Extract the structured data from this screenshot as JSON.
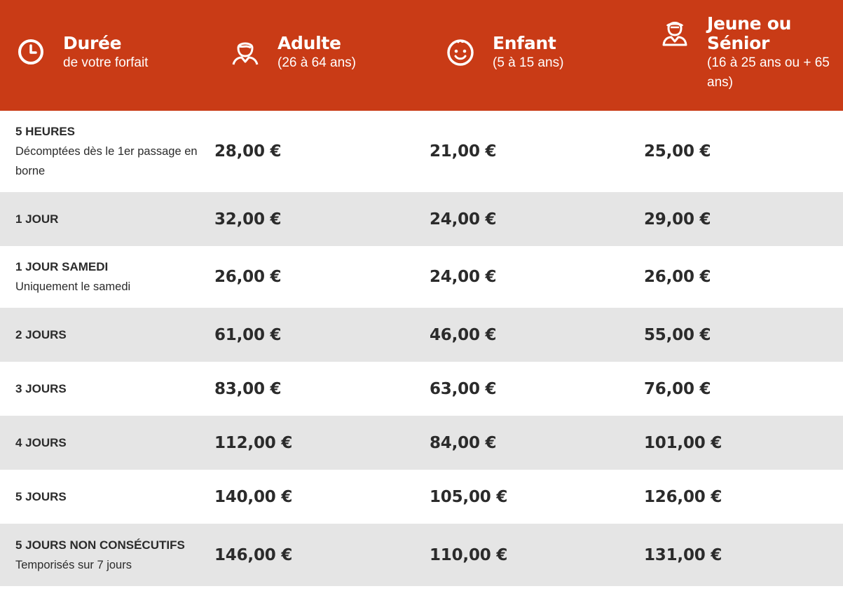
{
  "colors": {
    "brand": "#c93b16",
    "row_alt": "#e5e5e5",
    "text": "#2b2b2b"
  },
  "header": {
    "columns": [
      {
        "icon": "clock-icon",
        "title": "Durée",
        "subtitle": "de votre forfait"
      },
      {
        "icon": "adult-icon",
        "title": "Adulte",
        "subtitle": "(26 à 64 ans)"
      },
      {
        "icon": "child-face-icon",
        "title": "Enfant",
        "subtitle": "(5 à 15 ans)"
      },
      {
        "icon": "senior-icon",
        "title": "Jeune ou Sénior",
        "subtitle": "(16 à 25 ans ou + 65 ans)"
      }
    ]
  },
  "rows": [
    {
      "label": "5 HEURES",
      "note": "Décomptées dès le 1er passage en borne",
      "adulte": "28,00 €",
      "enfant": "21,00 €",
      "jeune_senior": "25,00 €"
    },
    {
      "label": "1 JOUR",
      "note": "",
      "adulte": "32,00 €",
      "enfant": "24,00 €",
      "jeune_senior": "29,00 €"
    },
    {
      "label": "1 JOUR SAMEDI",
      "note": "Uniquement le samedi",
      "adulte": "26,00 €",
      "enfant": "24,00 €",
      "jeune_senior": "26,00 €"
    },
    {
      "label": "2 JOURS",
      "note": "",
      "adulte": "61,00 €",
      "enfant": "46,00 €",
      "jeune_senior": "55,00 €"
    },
    {
      "label": "3 JOURS",
      "note": "",
      "adulte": "83,00 €",
      "enfant": "63,00 €",
      "jeune_senior": "76,00 €"
    },
    {
      "label": "4 JOURS",
      "note": "",
      "adulte": "112,00 €",
      "enfant": "84,00 €",
      "jeune_senior": "101,00 €"
    },
    {
      "label": "5 JOURS",
      "note": "",
      "adulte": "140,00 €",
      "enfant": "105,00 €",
      "jeune_senior": "126,00 €"
    },
    {
      "label": "5 JOURS NON CONSÉCUTIFS",
      "note": "Temporisés sur 7 jours",
      "adulte": "146,00 €",
      "enfant": "110,00 €",
      "jeune_senior": "131,00 €"
    }
  ]
}
